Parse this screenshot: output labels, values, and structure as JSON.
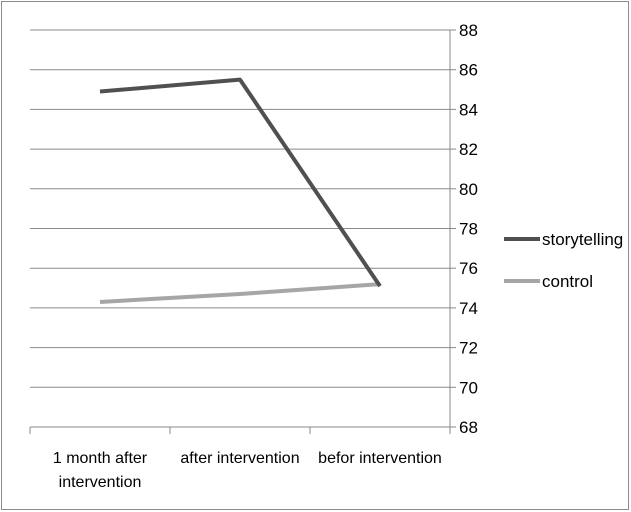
{
  "chart_data": {
    "type": "line",
    "categories": [
      "1 month after intervention",
      "after intervention",
      "befor intervention"
    ],
    "category_lines": [
      [
        "1 month after",
        "intervention"
      ],
      [
        "after intervention"
      ],
      [
        "befor intervention"
      ]
    ],
    "series": [
      {
        "name": "storytelling",
        "values": [
          84.9,
          85.5,
          75.1
        ],
        "color": "#505050"
      },
      {
        "name": "control",
        "values": [
          74.3,
          74.7,
          75.2
        ],
        "color": "#a6a6a6"
      }
    ],
    "y_ticks": [
      "68",
      "70",
      "72",
      "74",
      "76",
      "78",
      "80",
      "82",
      "84",
      "86",
      "88"
    ],
    "ylim": [
      68,
      88
    ],
    "y_axis_position": "right",
    "gridlines": true,
    "legend": "right"
  }
}
